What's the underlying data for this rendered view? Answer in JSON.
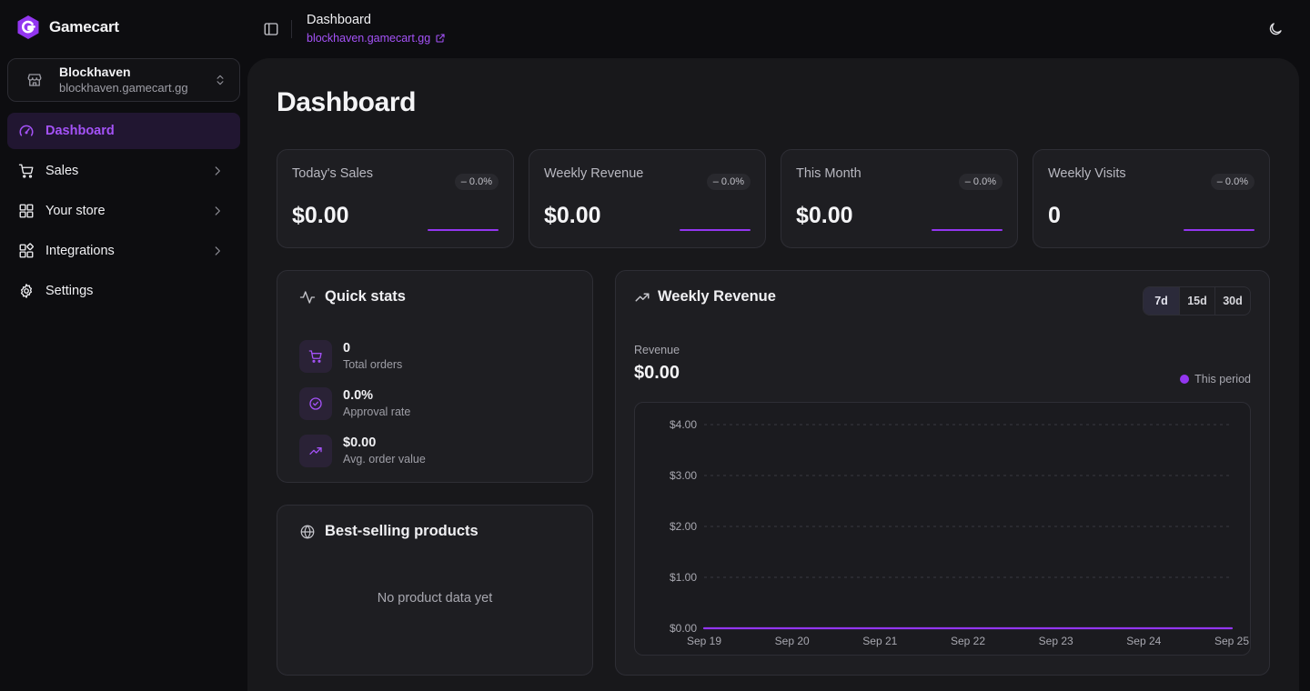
{
  "app": {
    "name": "Gamecart",
    "brand_color": "#9336f0"
  },
  "store": {
    "name": "Blockhaven",
    "domain": "blockhaven.gamecart.gg",
    "icon": "store-icon"
  },
  "nav": {
    "items": [
      {
        "label": "Dashboard",
        "icon": "gauge-icon",
        "active": true
      },
      {
        "label": "Sales",
        "icon": "cart-icon"
      },
      {
        "label": "Your store",
        "icon": "grid-icon"
      },
      {
        "label": "Integrations",
        "icon": "integrations-icon"
      },
      {
        "label": "Settings",
        "icon": "gear-icon"
      }
    ]
  },
  "topbar": {
    "title": "Dashboard",
    "link": "blockhaven.gamecart.gg"
  },
  "page": {
    "title": "Dashboard"
  },
  "stats": [
    {
      "label": "Today's Sales",
      "value": "$0.00",
      "change": "– 0.0%"
    },
    {
      "label": "Weekly Revenue",
      "value": "$0.00",
      "change": "– 0.0%"
    },
    {
      "label": "This Month",
      "value": "$0.00",
      "change": "– 0.0%"
    },
    {
      "label": "Weekly Visits",
      "value": "0",
      "change": "– 0.0%"
    }
  ],
  "quick_stats": {
    "title": "Quick stats",
    "items": [
      {
        "value": "0",
        "label": "Total orders",
        "icon": "cart-icon"
      },
      {
        "value": "0.0%",
        "label": "Approval rate",
        "icon": "check-circle-icon"
      },
      {
        "value": "$0.00",
        "label": "Avg. order value",
        "icon": "trend-up-icon"
      }
    ]
  },
  "best_selling": {
    "title": "Best-selling products",
    "empty": "No product data yet"
  },
  "weekly_revenue": {
    "title": "Weekly Revenue",
    "ranges": [
      "7d",
      "15d",
      "30d"
    ],
    "active_range": "7d",
    "metric_label": "Revenue",
    "metric_value": "$0.00",
    "legend": "This period"
  },
  "chart_data": {
    "type": "line",
    "x": [
      "Sep 19",
      "Sep 20",
      "Sep 21",
      "Sep 22",
      "Sep 23",
      "Sep 24",
      "Sep 25"
    ],
    "series": [
      {
        "name": "This period",
        "values": [
          0,
          0,
          0,
          0,
          0,
          0,
          0
        ],
        "color": "#9336f0"
      }
    ],
    "y_ticks": [
      "$0.00",
      "$1.00",
      "$2.00",
      "$3.00",
      "$4.00"
    ],
    "ylim": [
      0,
      4
    ],
    "grid": true
  }
}
